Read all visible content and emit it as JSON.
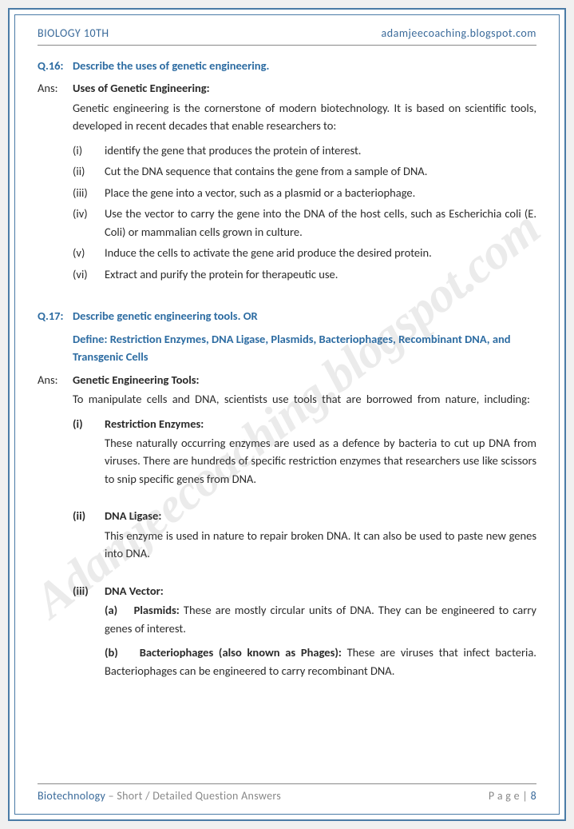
{
  "header": {
    "left": "BIOLOGY 10TH",
    "right": "adamjeecoaching.blogspot.com"
  },
  "watermark": "Adamjeecoaching.blogspot.com",
  "q16": {
    "num": "Q.16:",
    "question": "Describe the uses of genetic engineering.",
    "ans_label": "Ans:",
    "ans_heading": "Uses of Genetic Engineering:",
    "intro": "Genetic engineering is the cornerstone of modern biotechnology. It is based on scientific tools, developed in recent decades that enable researchers to:",
    "items": [
      {
        "n": "(i)",
        "t": "identify the gene that produces the protein of interest."
      },
      {
        "n": "(ii)",
        "t": "Cut the DNA sequence that contains the gene from a sample of DNA."
      },
      {
        "n": "(iii)",
        "t": "Place the gene into a vector, such as a plasmid or a bacteriophage."
      },
      {
        "n": "(iv)",
        "t": "Use the vector to carry the gene into the DNA of the host cells, such as Escherichia coli (E. Coli) or mammalian cells grown in culture."
      },
      {
        "n": "(v)",
        "t": "Induce the cells to activate the gene arid produce the desired protein."
      },
      {
        "n": "(vi)",
        "t": "Extract and purify the protein for therapeutic use."
      }
    ]
  },
  "q17": {
    "num": "Q.17:",
    "question": "Describe genetic engineering tools.   OR",
    "sub_question": "Define: Restriction Enzymes, DNA Ligase, Plasmids, Bacteriophages, Recombinant DNA, and Transgenic Cells",
    "ans_label": "Ans:",
    "ans_heading": "Genetic Engineering Tools:",
    "intro": "To manipulate cells and DNA, scientists use tools that are borrowed from nature, including:",
    "tools": [
      {
        "n": "(i)",
        "title": "Restriction Enzymes:",
        "body": "These naturally occurring enzymes are used as a defence by bacteria to cut up DNA from viruses. There are hundreds of specific restriction enzymes that researchers use like scissors to snip specific genes from DNA."
      },
      {
        "n": "(ii)",
        "title": "DNA Ligase:",
        "body": "This enzyme is used in nature to repair broken DNA. It can also be used to paste new genes into DNA."
      },
      {
        "n": "(iii)",
        "title": "DNA Vector:",
        "sub": [
          {
            "n": "(a)",
            "b": "Plasmids:",
            "t": " These are mostly circular units of DNA. They can be engineered to carry genes of interest."
          },
          {
            "n": "(b)",
            "b": "Bacteriophages (also known as Phages):",
            "t": " These are viruses that infect bacteria. Bacteriophages can be engineered to carry recombinant DNA."
          }
        ]
      }
    ]
  },
  "footer": {
    "subject": "Biotechnology",
    "desc": " – Short / Detailed Question Answers",
    "page_label": "P a g e  | ",
    "page_num": "8"
  },
  "colors": {
    "blue": "#2d6ca2",
    "header_blue": "#3a6a9a",
    "text": "#2a2a2a",
    "border": "#4a7ba6"
  }
}
